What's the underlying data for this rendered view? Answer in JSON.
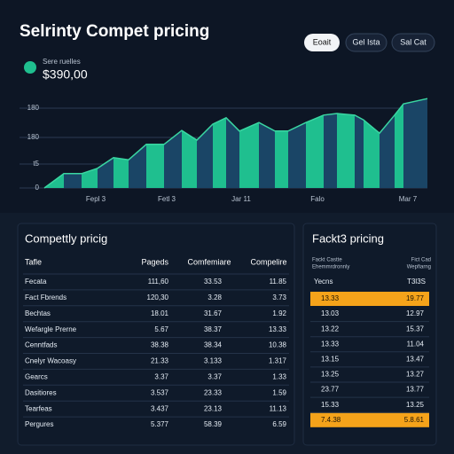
{
  "header": {
    "title": "Selrinty Compet pricing",
    "buttons": [
      "Eoait",
      "Gel Ista",
      "Sal Cat"
    ]
  },
  "stat": {
    "label": "Sere ruelles",
    "value": "$390,00"
  },
  "chart_data": {
    "type": "area",
    "x": [
      0,
      22,
      42,
      60,
      78,
      95,
      115,
      135,
      155,
      172,
      190,
      205,
      220,
      242,
      260,
      275,
      295,
      315,
      330,
      350,
      360,
      378,
      395,
      405,
      432
    ],
    "values": [
      0,
      27,
      27,
      37,
      57,
      53,
      82,
      82,
      108,
      90,
      120,
      132,
      107,
      123,
      107,
      107,
      123,
      137,
      140,
      137,
      128,
      103,
      137,
      158,
      168
    ],
    "colors": [
      "#1fbf8f",
      "#1a4566"
    ],
    "line_color": "#3ad6a2",
    "xlim": [
      0,
      432
    ],
    "ylim": [
      0,
      170
    ],
    "xticks": [
      {
        "value": 58,
        "label": "Fepl 3"
      },
      {
        "value": 138,
        "label": "Fetl 3"
      },
      {
        "value": 222,
        "label": "Jar 11"
      },
      {
        "value": 308,
        "label": "Falo"
      },
      {
        "value": 410,
        "label": "Mar 7"
      }
    ],
    "yticks": [
      0,
      {
        "value": 45,
        "label": "t5"
      },
      {
        "value": 95,
        "label": "180"
      },
      {
        "value": 150,
        "label": "180"
      }
    ],
    "grid": true
  },
  "left_table": {
    "title": "Compettly pricig",
    "header": [
      "Tafle",
      "Pageds",
      "Comfemiare",
      "Compelire"
    ],
    "rows": [
      [
        "Fecata",
        "111,60",
        "33.53",
        "11.85"
      ],
      [
        "Fact Fbrends",
        "120,30",
        "3.28",
        "3.73"
      ],
      [
        "Bechtas",
        "18.01",
        "31.67",
        "1.92"
      ],
      [
        "Wefargle Prerne",
        "5.67",
        "38.37",
        "13.33"
      ],
      [
        "Cenntfads",
        "38.38",
        "38.34",
        "10.38"
      ],
      [
        "Cnelyr Wacoasy",
        "21.33",
        "3.133",
        "1.317"
      ],
      [
        "Gearcs",
        "3.37",
        "3.37",
        "1.33"
      ],
      [
        "Dasitiores",
        "3.537",
        "23.33",
        "1.59"
      ],
      [
        "Tearfeas",
        "3.437",
        "23.13",
        "11.13"
      ],
      [
        "Pergures",
        "5.377",
        "58.39",
        "6.59"
      ]
    ]
  },
  "right_table": {
    "title": "Fackt3 pricing",
    "header": [
      "Fackt Castte",
      "Ehemmrdronnly",
      "Fict Cad",
      "Wepfiarng"
    ],
    "subheader": [
      "Yecns",
      "T3l3S"
    ],
    "rows": [
      [
        "13.33",
        "19.77"
      ],
      [
        "13.03",
        "12.97"
      ],
      [
        "13.22",
        "15.37"
      ],
      [
        "13.33",
        "11.04"
      ],
      [
        "13.15",
        "13.47"
      ],
      [
        "13.25",
        "13.27"
      ],
      [
        "23.77",
        "13.77"
      ],
      [
        "15.33",
        "13.25"
      ],
      [
        "7.4.38",
        "5.8.61"
      ]
    ]
  }
}
